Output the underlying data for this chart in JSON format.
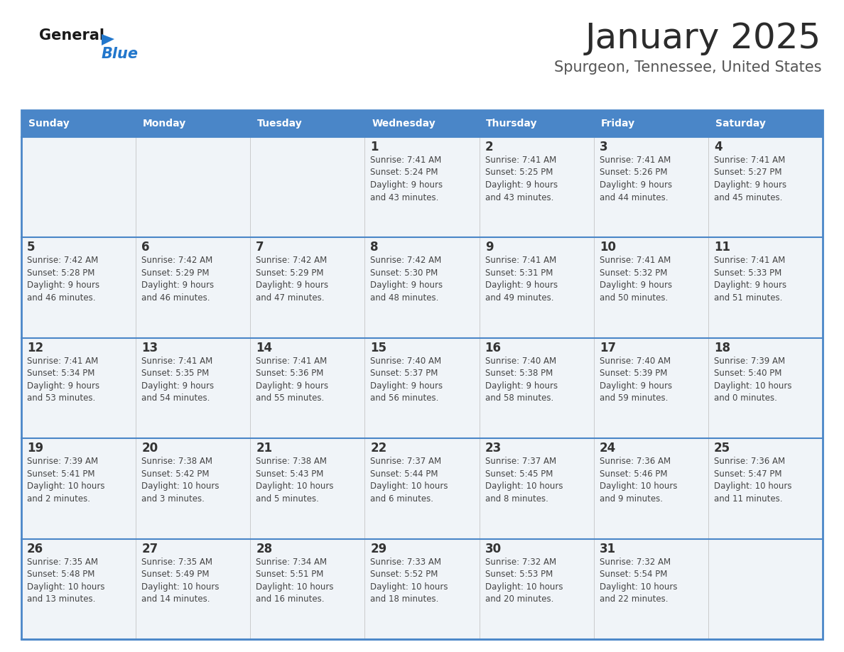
{
  "title": "January 2025",
  "subtitle": "Spurgeon, Tennessee, United States",
  "header_bg": "#4a86c8",
  "header_text_color": "#ffffff",
  "cell_bg": "#f0f4f8",
  "border_color": "#4a86c8",
  "row_border_color": "#4a86c8",
  "day_names": [
    "Sunday",
    "Monday",
    "Tuesday",
    "Wednesday",
    "Thursday",
    "Friday",
    "Saturday"
  ],
  "title_color": "#2b2b2b",
  "subtitle_color": "#555555",
  "day_number_color": "#333333",
  "info_color": "#444444",
  "logo_general_color": "#1a1a1a",
  "logo_blue_color": "#2277cc",
  "logo_triangle_color": "#2277cc",
  "weeks": [
    [
      {
        "day": "",
        "info": ""
      },
      {
        "day": "",
        "info": ""
      },
      {
        "day": "",
        "info": ""
      },
      {
        "day": "1",
        "info": "Sunrise: 7:41 AM\nSunset: 5:24 PM\nDaylight: 9 hours\nand 43 minutes."
      },
      {
        "day": "2",
        "info": "Sunrise: 7:41 AM\nSunset: 5:25 PM\nDaylight: 9 hours\nand 43 minutes."
      },
      {
        "day": "3",
        "info": "Sunrise: 7:41 AM\nSunset: 5:26 PM\nDaylight: 9 hours\nand 44 minutes."
      },
      {
        "day": "4",
        "info": "Sunrise: 7:41 AM\nSunset: 5:27 PM\nDaylight: 9 hours\nand 45 minutes."
      }
    ],
    [
      {
        "day": "5",
        "info": "Sunrise: 7:42 AM\nSunset: 5:28 PM\nDaylight: 9 hours\nand 46 minutes."
      },
      {
        "day": "6",
        "info": "Sunrise: 7:42 AM\nSunset: 5:29 PM\nDaylight: 9 hours\nand 46 minutes."
      },
      {
        "day": "7",
        "info": "Sunrise: 7:42 AM\nSunset: 5:29 PM\nDaylight: 9 hours\nand 47 minutes."
      },
      {
        "day": "8",
        "info": "Sunrise: 7:42 AM\nSunset: 5:30 PM\nDaylight: 9 hours\nand 48 minutes."
      },
      {
        "day": "9",
        "info": "Sunrise: 7:41 AM\nSunset: 5:31 PM\nDaylight: 9 hours\nand 49 minutes."
      },
      {
        "day": "10",
        "info": "Sunrise: 7:41 AM\nSunset: 5:32 PM\nDaylight: 9 hours\nand 50 minutes."
      },
      {
        "day": "11",
        "info": "Sunrise: 7:41 AM\nSunset: 5:33 PM\nDaylight: 9 hours\nand 51 minutes."
      }
    ],
    [
      {
        "day": "12",
        "info": "Sunrise: 7:41 AM\nSunset: 5:34 PM\nDaylight: 9 hours\nand 53 minutes."
      },
      {
        "day": "13",
        "info": "Sunrise: 7:41 AM\nSunset: 5:35 PM\nDaylight: 9 hours\nand 54 minutes."
      },
      {
        "day": "14",
        "info": "Sunrise: 7:41 AM\nSunset: 5:36 PM\nDaylight: 9 hours\nand 55 minutes."
      },
      {
        "day": "15",
        "info": "Sunrise: 7:40 AM\nSunset: 5:37 PM\nDaylight: 9 hours\nand 56 minutes."
      },
      {
        "day": "16",
        "info": "Sunrise: 7:40 AM\nSunset: 5:38 PM\nDaylight: 9 hours\nand 58 minutes."
      },
      {
        "day": "17",
        "info": "Sunrise: 7:40 AM\nSunset: 5:39 PM\nDaylight: 9 hours\nand 59 minutes."
      },
      {
        "day": "18",
        "info": "Sunrise: 7:39 AM\nSunset: 5:40 PM\nDaylight: 10 hours\nand 0 minutes."
      }
    ],
    [
      {
        "day": "19",
        "info": "Sunrise: 7:39 AM\nSunset: 5:41 PM\nDaylight: 10 hours\nand 2 minutes."
      },
      {
        "day": "20",
        "info": "Sunrise: 7:38 AM\nSunset: 5:42 PM\nDaylight: 10 hours\nand 3 minutes."
      },
      {
        "day": "21",
        "info": "Sunrise: 7:38 AM\nSunset: 5:43 PM\nDaylight: 10 hours\nand 5 minutes."
      },
      {
        "day": "22",
        "info": "Sunrise: 7:37 AM\nSunset: 5:44 PM\nDaylight: 10 hours\nand 6 minutes."
      },
      {
        "day": "23",
        "info": "Sunrise: 7:37 AM\nSunset: 5:45 PM\nDaylight: 10 hours\nand 8 minutes."
      },
      {
        "day": "24",
        "info": "Sunrise: 7:36 AM\nSunset: 5:46 PM\nDaylight: 10 hours\nand 9 minutes."
      },
      {
        "day": "25",
        "info": "Sunrise: 7:36 AM\nSunset: 5:47 PM\nDaylight: 10 hours\nand 11 minutes."
      }
    ],
    [
      {
        "day": "26",
        "info": "Sunrise: 7:35 AM\nSunset: 5:48 PM\nDaylight: 10 hours\nand 13 minutes."
      },
      {
        "day": "27",
        "info": "Sunrise: 7:35 AM\nSunset: 5:49 PM\nDaylight: 10 hours\nand 14 minutes."
      },
      {
        "day": "28",
        "info": "Sunrise: 7:34 AM\nSunset: 5:51 PM\nDaylight: 10 hours\nand 16 minutes."
      },
      {
        "day": "29",
        "info": "Sunrise: 7:33 AM\nSunset: 5:52 PM\nDaylight: 10 hours\nand 18 minutes."
      },
      {
        "day": "30",
        "info": "Sunrise: 7:32 AM\nSunset: 5:53 PM\nDaylight: 10 hours\nand 20 minutes."
      },
      {
        "day": "31",
        "info": "Sunrise: 7:32 AM\nSunset: 5:54 PM\nDaylight: 10 hours\nand 22 minutes."
      },
      {
        "day": "",
        "info": ""
      }
    ]
  ]
}
